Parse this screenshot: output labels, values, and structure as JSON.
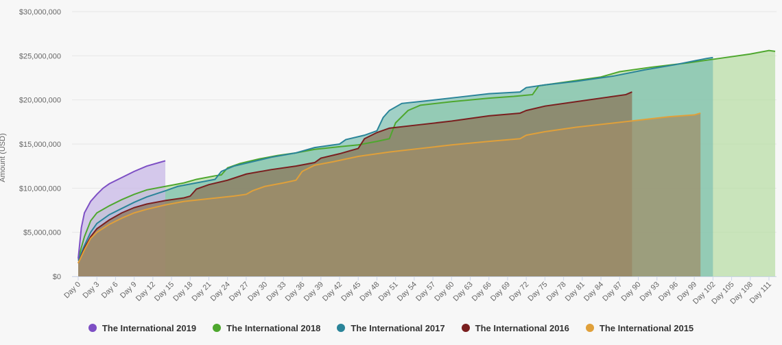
{
  "chart_data": {
    "type": "area",
    "title": "",
    "xlabel": "",
    "ylabel": "Amount (USD)",
    "ylim": [
      0,
      30000000
    ],
    "yticks": [
      {
        "value": 0,
        "label": "$0"
      },
      {
        "value": 5000000,
        "label": "$5,000,000"
      },
      {
        "value": 10000000,
        "label": "$10,000,000"
      },
      {
        "value": 15000000,
        "label": "$15,000,000"
      },
      {
        "value": 20000000,
        "label": "$20,000,000"
      },
      {
        "value": 25000000,
        "label": "$25,000,000"
      },
      {
        "value": 30000000,
        "label": "$30,000,000"
      }
    ],
    "xlim": [
      0,
      112
    ],
    "xticks": [
      {
        "value": 0,
        "label": "Day 0"
      },
      {
        "value": 3,
        "label": "Day 3"
      },
      {
        "value": 6,
        "label": "Day 6"
      },
      {
        "value": 9,
        "label": "Day 9"
      },
      {
        "value": 12,
        "label": "Day 12"
      },
      {
        "value": 15,
        "label": "Day 15"
      },
      {
        "value": 18,
        "label": "Day 18"
      },
      {
        "value": 21,
        "label": "Day 21"
      },
      {
        "value": 24,
        "label": "Day 24"
      },
      {
        "value": 27,
        "label": "Day 27"
      },
      {
        "value": 30,
        "label": "Day 30"
      },
      {
        "value": 33,
        "label": "Day 33"
      },
      {
        "value": 36,
        "label": "Day 36"
      },
      {
        "value": 39,
        "label": "Day 39"
      },
      {
        "value": 42,
        "label": "Day 42"
      },
      {
        "value": 45,
        "label": "Day 45"
      },
      {
        "value": 48,
        "label": "Day 48"
      },
      {
        "value": 51,
        "label": "Day 51"
      },
      {
        "value": 54,
        "label": "Day 54"
      },
      {
        "value": 57,
        "label": "Day 57"
      },
      {
        "value": 60,
        "label": "Day 60"
      },
      {
        "value": 63,
        "label": "Day 63"
      },
      {
        "value": 66,
        "label": "Day 66"
      },
      {
        "value": 69,
        "label": "Day 69"
      },
      {
        "value": 72,
        "label": "Day 72"
      },
      {
        "value": 75,
        "label": "Day 75"
      },
      {
        "value": 78,
        "label": "Day 78"
      },
      {
        "value": 81,
        "label": "Day 81"
      },
      {
        "value": 84,
        "label": "Day 84"
      },
      {
        "value": 87,
        "label": "Day 87"
      },
      {
        "value": 90,
        "label": "Day 90"
      },
      {
        "value": 93,
        "label": "Day 93"
      },
      {
        "value": 96,
        "label": "Day 96"
      },
      {
        "value": 99,
        "label": "Day 99"
      },
      {
        "value": 102,
        "label": "Day 102"
      },
      {
        "value": 105,
        "label": "Day 105"
      },
      {
        "value": 108,
        "label": "Day 108"
      },
      {
        "value": 111,
        "label": "Day 111"
      }
    ],
    "grid": true,
    "legend_position": "bottom-center",
    "series": [
      {
        "name": "The International 2018",
        "color": "#4ea72e",
        "fill": "#b7dca3",
        "points": [
          [
            0,
            2000000
          ],
          [
            1,
            4500000
          ],
          [
            2,
            6300000
          ],
          [
            3,
            7200000
          ],
          [
            5,
            8000000
          ],
          [
            7,
            8700000
          ],
          [
            9,
            9300000
          ],
          [
            11,
            9800000
          ],
          [
            14,
            10200000
          ],
          [
            17,
            10600000
          ],
          [
            19,
            11000000
          ],
          [
            22,
            11400000
          ],
          [
            23,
            11500000
          ],
          [
            24,
            12300000
          ],
          [
            26,
            12800000
          ],
          [
            29,
            13300000
          ],
          [
            32,
            13700000
          ],
          [
            35,
            14000000
          ],
          [
            38,
            14400000
          ],
          [
            42,
            14700000
          ],
          [
            45,
            14900000
          ],
          [
            48,
            15300000
          ],
          [
            50,
            15600000
          ],
          [
            51,
            17400000
          ],
          [
            53,
            18800000
          ],
          [
            55,
            19400000
          ],
          [
            60,
            19800000
          ],
          [
            66,
            20200000
          ],
          [
            70,
            20400000
          ],
          [
            73,
            20600000
          ],
          [
            74,
            21600000
          ],
          [
            78,
            22000000
          ],
          [
            84,
            22600000
          ],
          [
            87,
            23200000
          ],
          [
            92,
            23700000
          ],
          [
            98,
            24200000
          ],
          [
            103,
            24700000
          ],
          [
            108,
            25200000
          ],
          [
            111,
            25600000
          ],
          [
            112,
            25500000
          ]
        ]
      },
      {
        "name": "The International 2017",
        "color": "#2a8499",
        "fill": "#7fc1b3",
        "points": [
          [
            0,
            1800000
          ],
          [
            1,
            3500000
          ],
          [
            2,
            5000000
          ],
          [
            3,
            6000000
          ],
          [
            5,
            7000000
          ],
          [
            7,
            7700000
          ],
          [
            9,
            8400000
          ],
          [
            11,
            9000000
          ],
          [
            14,
            9700000
          ],
          [
            16,
            10200000
          ],
          [
            19,
            10600000
          ],
          [
            22,
            11000000
          ],
          [
            23,
            11900000
          ],
          [
            25,
            12500000
          ],
          [
            28,
            13000000
          ],
          [
            31,
            13500000
          ],
          [
            35,
            14000000
          ],
          [
            38,
            14600000
          ],
          [
            42,
            15000000
          ],
          [
            43,
            15500000
          ],
          [
            46,
            16000000
          ],
          [
            48,
            16500000
          ],
          [
            49,
            18000000
          ],
          [
            50,
            18800000
          ],
          [
            52,
            19600000
          ],
          [
            56,
            19900000
          ],
          [
            61,
            20300000
          ],
          [
            66,
            20700000
          ],
          [
            71,
            20900000
          ],
          [
            72,
            21400000
          ],
          [
            75,
            21700000
          ],
          [
            80,
            22100000
          ],
          [
            86,
            22700000
          ],
          [
            91,
            23400000
          ],
          [
            96,
            24000000
          ],
          [
            101,
            24700000
          ],
          [
            102,
            24800000
          ]
        ]
      },
      {
        "name": "The International 2019",
        "color": "#7d4fc4",
        "fill": "#c6b5e6",
        "points": [
          [
            0,
            2000000
          ],
          [
            0.5,
            5500000
          ],
          [
            1,
            7200000
          ],
          [
            2,
            8500000
          ],
          [
            3,
            9300000
          ],
          [
            4,
            10000000
          ],
          [
            5,
            10500000
          ],
          [
            7,
            11200000
          ],
          [
            9,
            11900000
          ],
          [
            11,
            12500000
          ],
          [
            13,
            12900000
          ],
          [
            14,
            13100000
          ]
        ]
      },
      {
        "name": "The International 2016",
        "color": "#7a1f1f",
        "fill": "#8a7358",
        "points": [
          [
            0,
            1500000
          ],
          [
            1,
            3200000
          ],
          [
            2,
            4500000
          ],
          [
            3,
            5400000
          ],
          [
            5,
            6400000
          ],
          [
            7,
            7200000
          ],
          [
            9,
            7800000
          ],
          [
            11,
            8200000
          ],
          [
            14,
            8600000
          ],
          [
            17,
            8900000
          ],
          [
            18,
            9100000
          ],
          [
            19,
            9900000
          ],
          [
            21,
            10400000
          ],
          [
            24,
            10900000
          ],
          [
            27,
            11600000
          ],
          [
            31,
            12100000
          ],
          [
            35,
            12500000
          ],
          [
            38,
            12900000
          ],
          [
            39,
            13400000
          ],
          [
            42,
            13900000
          ],
          [
            45,
            14500000
          ],
          [
            46,
            15600000
          ],
          [
            48,
            16300000
          ],
          [
            50,
            16800000
          ],
          [
            55,
            17200000
          ],
          [
            60,
            17600000
          ],
          [
            66,
            18200000
          ],
          [
            71,
            18500000
          ],
          [
            72,
            18800000
          ],
          [
            75,
            19300000
          ],
          [
            80,
            19800000
          ],
          [
            85,
            20300000
          ],
          [
            88,
            20600000
          ],
          [
            89,
            20900000
          ]
        ]
      },
      {
        "name": "The International 2015",
        "color": "#e0a03a",
        "fill": "#a08c68",
        "points": [
          [
            0,
            1500000
          ],
          [
            1,
            3000000
          ],
          [
            2,
            4300000
          ],
          [
            3,
            5000000
          ],
          [
            5,
            5900000
          ],
          [
            7,
            6600000
          ],
          [
            9,
            7200000
          ],
          [
            11,
            7600000
          ],
          [
            14,
            8100000
          ],
          [
            17,
            8500000
          ],
          [
            21,
            8800000
          ],
          [
            25,
            9100000
          ],
          [
            27,
            9300000
          ],
          [
            28,
            9700000
          ],
          [
            30,
            10200000
          ],
          [
            33,
            10600000
          ],
          [
            35,
            10900000
          ],
          [
            36,
            11900000
          ],
          [
            38,
            12600000
          ],
          [
            41,
            13000000
          ],
          [
            45,
            13600000
          ],
          [
            50,
            14100000
          ],
          [
            55,
            14500000
          ],
          [
            60,
            14900000
          ],
          [
            66,
            15300000
          ],
          [
            71,
            15600000
          ],
          [
            72,
            16000000
          ],
          [
            75,
            16400000
          ],
          [
            80,
            16900000
          ],
          [
            85,
            17300000
          ],
          [
            90,
            17700000
          ],
          [
            95,
            18100000
          ],
          [
            99,
            18300000
          ],
          [
            100,
            18500000
          ]
        ]
      }
    ]
  },
  "legend": [
    {
      "label": "The International 2019",
      "color": "#7d4fc4"
    },
    {
      "label": "The International 2018",
      "color": "#4ea72e"
    },
    {
      "label": "The International 2017",
      "color": "#2a8499"
    },
    {
      "label": "The International 2016",
      "color": "#7a1f1f"
    },
    {
      "label": "The International 2015",
      "color": "#e0a03a"
    }
  ]
}
